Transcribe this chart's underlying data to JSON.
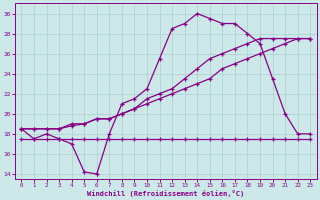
{
  "xlabel": "Windchill (Refroidissement éolien,°C)",
  "background_color": "#cce8e8",
  "grid_color": "#aacfcf",
  "line_color": "#880088",
  "hours": [
    0,
    1,
    2,
    3,
    4,
    5,
    6,
    7,
    8,
    9,
    10,
    11,
    12,
    13,
    14,
    15,
    16,
    17,
    18,
    19,
    20,
    21,
    22,
    23
  ],
  "temp_line": [
    18.5,
    17.5,
    18.0,
    17.5,
    17.0,
    14.2,
    14.0,
    18.0,
    21.0,
    21.5,
    22.5,
    25.5,
    28.5,
    29.0,
    30.0,
    29.5,
    29.0,
    29.0,
    28.0,
    27.0,
    23.5,
    20.0,
    18.0,
    18.0
  ],
  "flat_line": [
    17.5,
    17.5,
    17.5,
    17.5,
    17.5,
    17.5,
    17.5,
    17.5,
    17.5,
    17.5,
    17.5,
    17.5,
    17.5,
    17.5,
    17.5,
    17.5,
    17.5,
    17.5,
    17.5,
    17.5,
    17.5,
    17.5,
    17.5,
    17.5
  ],
  "rising_line1": [
    18.5,
    18.5,
    18.5,
    18.5,
    19.0,
    19.0,
    19.5,
    19.5,
    20.0,
    20.5,
    21.0,
    21.5,
    22.0,
    22.5,
    23.0,
    23.5,
    24.5,
    25.0,
    25.5,
    26.0,
    26.5,
    27.0,
    27.5,
    27.5
  ],
  "rising_line2": [
    18.5,
    18.5,
    18.5,
    18.5,
    18.8,
    19.0,
    19.5,
    19.5,
    20.0,
    20.5,
    21.5,
    22.0,
    22.5,
    23.5,
    24.5,
    25.5,
    26.0,
    26.5,
    27.0,
    27.5,
    27.5,
    27.5,
    27.5,
    27.5
  ],
  "ylim": [
    13.5,
    31.0
  ],
  "xlim": [
    -0.5,
    23.5
  ],
  "yticks": [
    14,
    16,
    18,
    20,
    22,
    24,
    26,
    28,
    30
  ],
  "xticks": [
    0,
    1,
    2,
    3,
    4,
    5,
    6,
    7,
    8,
    9,
    10,
    11,
    12,
    13,
    14,
    15,
    16,
    17,
    18,
    19,
    20,
    21,
    22,
    23
  ]
}
